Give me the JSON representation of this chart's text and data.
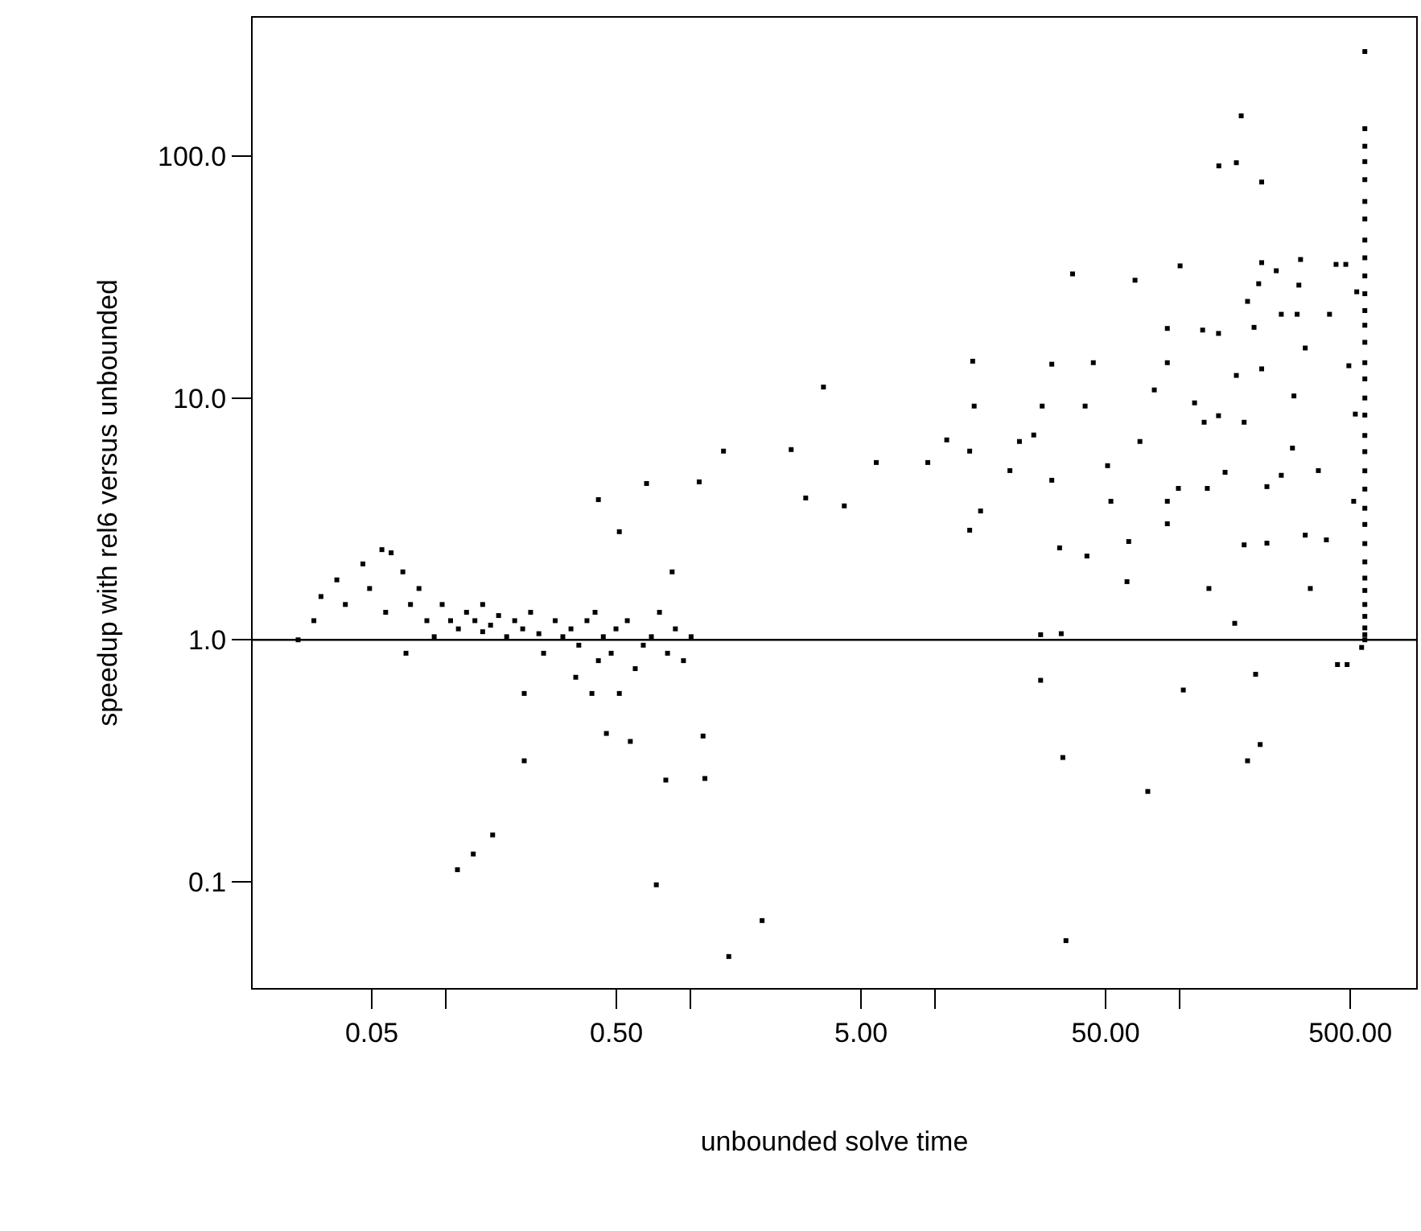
{
  "chart_data": {
    "type": "scatter",
    "xlabel": "unbounded solve time",
    "ylabel": "speedup with rel6 versus unbounded",
    "log": "xy",
    "grid": false,
    "marker": "square",
    "xlim": [
      0.0163,
      929
    ],
    "ylim": [
      0.0363,
      374
    ],
    "xticks": [
      0.05,
      {
        "value": 0.1,
        "label": null
      },
      {
        "value": 0.5,
        "label": "0.50"
      },
      {
        "value": 1,
        "label": null
      },
      {
        "value": 5,
        "label": "5.00"
      },
      {
        "value": 10,
        "label": null
      },
      {
        "value": 50,
        "label": "50.00"
      },
      {
        "value": 100,
        "label": null
      },
      {
        "value": 500,
        "label": "500.00"
      }
    ],
    "yticks": [
      {
        "value": 0.1,
        "label": "0.1"
      },
      {
        "value": 1,
        "label": "1.0"
      },
      {
        "value": 10,
        "label": "10.0"
      },
      {
        "value": 100,
        "label": "100.0"
      }
    ],
    "ref_lines": [
      {
        "axis": "y",
        "value": 1,
        "color": "#000000"
      }
    ],
    "series": [
      {
        "color": "#000000",
        "x": [
          0.025,
          0.029,
          0.031,
          0.036,
          0.039,
          0.046,
          0.049,
          0.055,
          0.06,
          0.057,
          0.067,
          0.072,
          0.078,
          0.084,
          0.069,
          0.09,
          0.097,
          0.105,
          0.113,
          0.122,
          0.132,
          0.142,
          0.142,
          0.153,
          0.165,
          0.178,
          0.192,
          0.207,
          0.223,
          0.241,
          0.252,
          0.21,
          0.21,
          0.281,
          0.302,
          0.326,
          0.341,
          0.351,
          0.379,
          0.397,
          0.409,
          0.422,
          0.442,
          0.455,
          0.476,
          0.498,
          0.514,
          0.554,
          0.57,
          0.597,
          0.644,
          0.695,
          0.75,
          0.809,
          0.871,
          0.94,
          1.01,
          0.422,
          0.514,
          0.664,
          0.845,
          1.09,
          0.156,
          0.112,
          0.13,
          0.728,
          1.97,
          1.44,
          0.796,
          1.15,
          1.13,
          1.37,
          2.59,
          3.51,
          2.97,
          4.27,
          5.77,
          9.37,
          11.2,
          14.3,
          14.5,
          13.9,
          15.4,
          13.9,
          20.3,
          22.2,
          25.4,
          27.5,
          30.1,
          36.6,
          44.5,
          41.2,
          30.1,
          32.4,
          41.9,
          50.9,
          52.5,
          27.1,
          32.9,
          27.1,
          33.4,
          34.4,
          74.3,
          65.9,
          79.0,
          69.0,
          62.1,
          61.1,
          89.3,
          89.3,
          89.3,
          89.3,
          100.7,
          99.1,
          103.8,
          115.4,
          124.5,
          126.3,
          130.1,
          132.1,
          144.6,
          144.6,
          153.8,
          168.4,
          171,
          184,
          184,
          190,
          214,
          205,
          228,
          228,
          217,
          202,
          190,
          211,
          217,
          249,
          261,
          303,
          313,
          308,
          327,
          294,
          290,
          261,
          370,
          327,
          399,
          343,
          411,
          437,
          479,
          531,
          493,
          524,
          516,
          443,
          485,
          556,
          179,
          171,
          145,
          217,
          573,
          573,
          573,
          573,
          573,
          573,
          573,
          573,
          573,
          573,
          573,
          573,
          573,
          573,
          573,
          573,
          573,
          573,
          573,
          573,
          573,
          573,
          573,
          573,
          573,
          573,
          573,
          573,
          573,
          573,
          573,
          573,
          573
        ],
        "values": [
          1.0,
          1.2,
          1.51,
          1.77,
          1.4,
          2.06,
          1.63,
          2.36,
          2.29,
          1.3,
          1.91,
          1.4,
          1.63,
          1.2,
          0.88,
          1.03,
          1.4,
          1.2,
          1.11,
          1.3,
          1.2,
          1.4,
          1.08,
          1.15,
          1.26,
          1.03,
          1.2,
          1.11,
          1.3,
          1.06,
          0.88,
          0.6,
          0.316,
          1.2,
          1.03,
          1.11,
          0.7,
          0.95,
          1.2,
          0.6,
          1.3,
          0.82,
          1.03,
          0.41,
          0.88,
          1.11,
          0.6,
          1.2,
          0.38,
          0.76,
          0.95,
          1.03,
          1.3,
          0.88,
          1.11,
          0.82,
          1.03,
          3.8,
          2.8,
          4.43,
          1.91,
          4.5,
          0.156,
          0.112,
          0.13,
          0.097,
          0.069,
          0.049,
          0.263,
          0.267,
          0.4,
          6.03,
          6.12,
          11.1,
          3.86,
          3.58,
          5.41,
          5.41,
          6.71,
          14.2,
          9.26,
          6.03,
          3.41,
          2.84,
          5.01,
          6.61,
          7.03,
          9.26,
          13.8,
          32.6,
          14.0,
          9.26,
          4.57,
          2.4,
          2.22,
          5.25,
          3.74,
          1.05,
          1.06,
          0.68,
          0.326,
          0.057,
          0.236,
          30.7,
          10.8,
          6.61,
          2.55,
          1.74,
          19.4,
          14.0,
          3.74,
          3.02,
          35.2,
          4.23,
          0.62,
          9.55,
          19.1,
          7.94,
          4.23,
          1.63,
          18.5,
          8.45,
          4.93,
          1.17,
          12.4,
          7.94,
          2.47,
          0.316,
          0.369,
          0.72,
          4.3,
          2.51,
          13.2,
          19.6,
          25.1,
          29.7,
          36.3,
          33.6,
          22.2,
          22.2,
          37.4,
          29.3,
          16.1,
          10.2,
          6.21,
          4.79,
          5.01,
          2.71,
          2.59,
          1.63,
          22.2,
          35.7,
          35.7,
          27.5,
          13.6,
          8.58,
          3.74,
          0.79,
          0.79,
          0.93,
          146.9,
          94.0,
          91.2,
          78.2,
          271,
          130,
          110,
          95,
          80,
          65,
          55,
          45,
          38,
          32,
          27,
          23,
          20,
          17,
          14,
          12,
          10,
          8.5,
          7,
          6,
          5,
          4.2,
          3.5,
          3,
          2.5,
          2.1,
          1.8,
          1.6,
          1.4,
          1.25,
          1.12,
          1.05,
          1.0
        ]
      }
    ]
  }
}
